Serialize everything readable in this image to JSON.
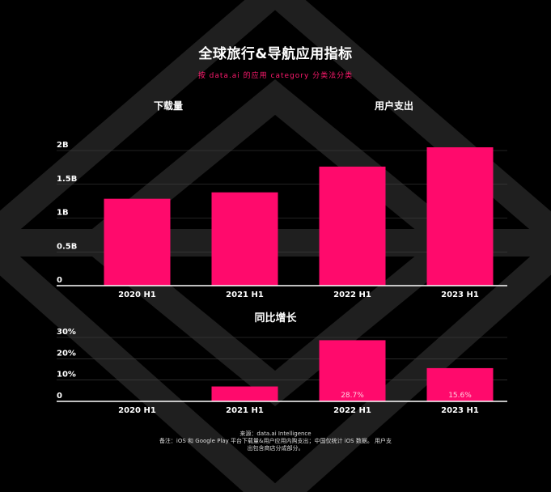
{
  "title": "全球旅行&导航应用指标",
  "subtitle": "按 data.ai 的应用 category 分类法分类",
  "section_labels": {
    "downloads": "下载量",
    "spend": "用户支出",
    "yoy": "同比增长"
  },
  "footer": {
    "source": "来源：data.ai Intelligence",
    "note_line1": "备注：iOS 和 Google Play 平台下载量&用户应用内购支出；中国仅统计 iOS 数据。 用户支",
    "note_line2": "出包含商店分成部分。"
  },
  "colors": {
    "bar": "#ff0a6c",
    "background": "#000000",
    "grid": "#444444"
  },
  "chart_data": [
    {
      "type": "bar",
      "categories": [
        "2020 H1",
        "2021 H1",
        "2022 H1",
        "2023 H1"
      ],
      "values": [
        1.35,
        1.45,
        1.85,
        2.15
      ],
      "yticks": [
        "0",
        "0.5B",
        "1B",
        "1.5B",
        "2B"
      ],
      "ylim": [
        0,
        2.1
      ],
      "grid": true
    },
    {
      "type": "bar",
      "title": "同比增长",
      "categories": [
        "2020 H1",
        "2021 H1",
        "2022 H1",
        "2023 H1"
      ],
      "values": [
        0,
        7,
        28.7,
        15.6
      ],
      "data_labels": [
        "",
        "",
        "28.7%",
        "15.6%"
      ],
      "yticks": [
        "0",
        "10%",
        "20%",
        "30%"
      ],
      "ylim": [
        0,
        30
      ],
      "grid": true
    }
  ]
}
